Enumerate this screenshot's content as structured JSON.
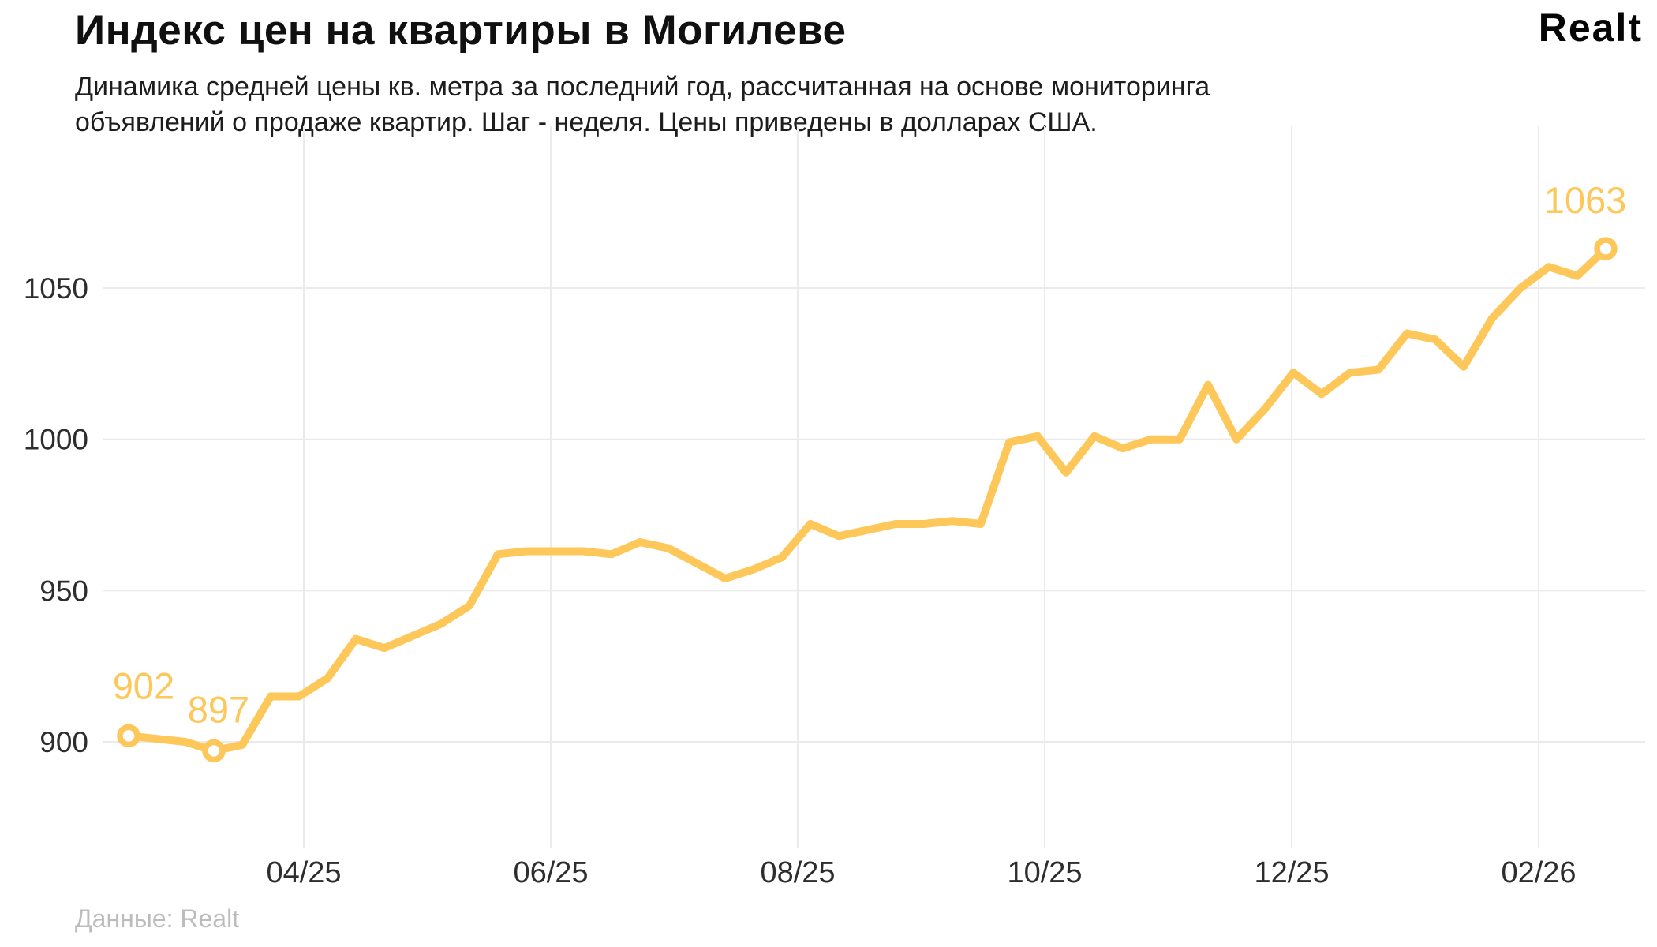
{
  "header": {
    "title": "Индекс цен на квартиры в Могилеве",
    "subtitle_line1": "Динамика средней цены кв. метра за последний год, рассчитанная на основе мониторинга",
    "subtitle_line2": "объявлений о продаже квартир. Шаг - неделя. Цены приведены в долларах США.",
    "logo_text": "Realt"
  },
  "footer": {
    "source_text": "Данные: Realt"
  },
  "colors": {
    "accent_yellow": "#FDC75A",
    "title_black": "#101010",
    "axis_text": "#2d2d2d",
    "gridline": "#ebebeb",
    "source_gray": "#bcbcbc",
    "marker_fill": "#ffffff"
  },
  "chart_data": {
    "type": "line",
    "title": "Индекс цен на квартиры в Могилеве",
    "subtitle": "Динамика средней цены кв. метра за последний год, рассчитанная на основе мониторинга объявлений о продаже квартир. Шаг - неделя. Цены приведены в долларах США.",
    "source": "Данные: Realt",
    "unit": "USD per m2",
    "step": "week",
    "grid": "on",
    "ylim": [
      860,
      1085
    ],
    "y_ticks": [
      900,
      950,
      1000,
      1050
    ],
    "x_tick_labels": [
      "04/25",
      "06/25",
      "08/25",
      "10/25",
      "12/25",
      "02/26"
    ],
    "series": [
      {
        "name": "Price index Mogilev",
        "values": [
          902,
          901,
          900,
          897,
          899,
          915,
          915,
          921,
          934,
          931,
          935,
          939,
          945,
          962,
          963,
          963,
          963,
          962,
          966,
          964,
          959,
          954,
          957,
          961,
          972,
          968,
          970,
          972,
          972,
          973,
          972,
          999,
          1001,
          989,
          1001,
          997,
          1000,
          1000,
          1018,
          1000,
          1010,
          1022,
          1015,
          1022,
          1023,
          1035,
          1033,
          1024,
          1040,
          1050,
          1057,
          1054,
          1063
        ]
      }
    ],
    "annotations": [
      {
        "index": 0,
        "label": "902"
      },
      {
        "index": 3,
        "label": "897"
      },
      {
        "index": 52,
        "label": "1063"
      }
    ]
  }
}
